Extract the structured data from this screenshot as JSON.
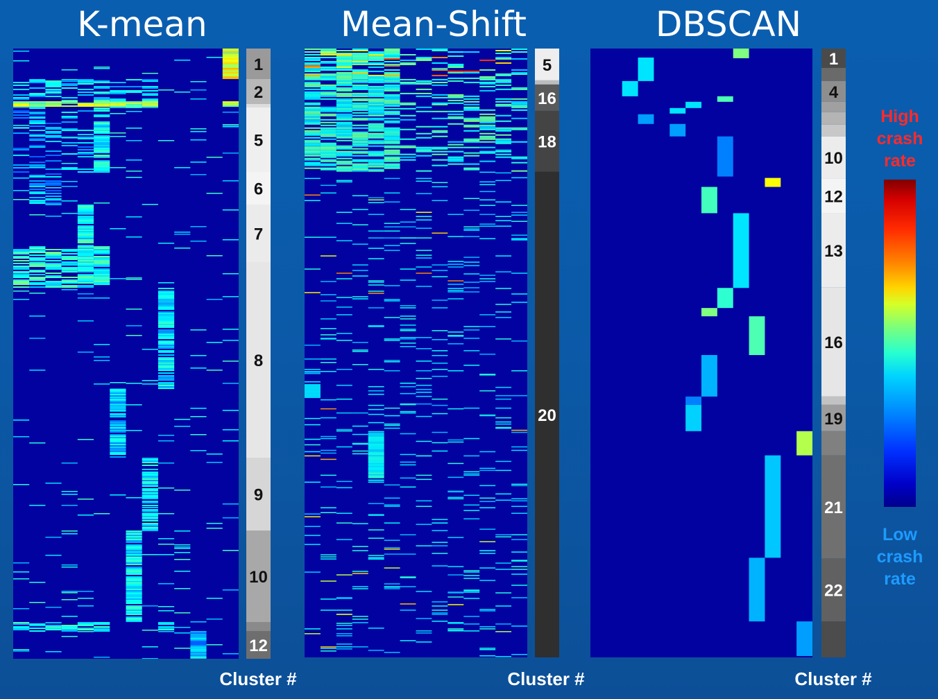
{
  "chart_data": [
    {
      "type": "heatmap",
      "title": "K-mean",
      "xlabel": "Cluster #",
      "clusters": [
        {
          "label": "1",
          "from": 0,
          "to": 44,
          "shade": "#9a9a9a"
        },
        {
          "label": "2",
          "from": 44,
          "to": 80,
          "shade": "#b8b8b8"
        },
        {
          "label": "",
          "from": 80,
          "to": 85,
          "shade": "#dddddd"
        },
        {
          "label": "5",
          "from": 85,
          "to": 178,
          "shade": "#efefef"
        },
        {
          "label": "6",
          "from": 178,
          "to": 225,
          "shade": "#f4f4f4"
        },
        {
          "label": "7",
          "from": 225,
          "to": 308,
          "shade": "#ebebeb"
        },
        {
          "label": "8",
          "from": 308,
          "to": 590,
          "shade": "#e6e6e6"
        },
        {
          "label": "9",
          "from": 590,
          "to": 695,
          "shade": "#d6d6d6"
        },
        {
          "label": "10",
          "from": 695,
          "to": 827,
          "shade": "#a8a8a8"
        },
        {
          "label": "",
          "from": 827,
          "to": 840,
          "shade": "#8a8a8a"
        },
        {
          "label": "12",
          "from": 840,
          "to": 880,
          "shade": "#6e6e6e"
        }
      ]
    },
    {
      "type": "heatmap",
      "title": "Mean-Shift",
      "xlabel": "Cluster #",
      "clusters": [
        {
          "label": "5",
          "from": 0,
          "to": 46,
          "shade": "#eeeeee"
        },
        {
          "label": "",
          "from": 46,
          "to": 52,
          "shade": "#bdbdbd"
        },
        {
          "label": "16",
          "from": 52,
          "to": 90,
          "shade": "#5a5a5a"
        },
        {
          "label": "18",
          "from": 90,
          "to": 178,
          "shade": "#444444"
        },
        {
          "label": "20",
          "from": 178,
          "to": 880,
          "shade": "#2f2f2f"
        }
      ]
    },
    {
      "type": "heatmap",
      "title": "DBSCAN",
      "xlabel": "Cluster #",
      "clusters": [
        {
          "label": "1",
          "from": 0,
          "to": 28,
          "shade": "#4a4a4a"
        },
        {
          "label": "",
          "from": 28,
          "to": 47,
          "shade": "#6a6a6a"
        },
        {
          "label": "4",
          "from": 47,
          "to": 77,
          "shade": "#8e8e8e"
        },
        {
          "label": "",
          "from": 77,
          "to": 92,
          "shade": "#a0a0a0"
        },
        {
          "label": "",
          "from": 92,
          "to": 110,
          "shade": "#b4b4b4"
        },
        {
          "label": "",
          "from": 110,
          "to": 127,
          "shade": "#c8c8c8"
        },
        {
          "label": "10",
          "from": 127,
          "to": 188,
          "shade": "#ececec"
        },
        {
          "label": "12",
          "from": 188,
          "to": 238,
          "shade": "#f4f4f4"
        },
        {
          "label": "13",
          "from": 238,
          "to": 345,
          "shade": "#ececec"
        },
        {
          "label": "16",
          "from": 345,
          "to": 503,
          "shade": "#e6e6e6"
        },
        {
          "label": "",
          "from": 503,
          "to": 515,
          "shade": "#c2c2c2"
        },
        {
          "label": "19",
          "from": 515,
          "to": 553,
          "shade": "#9c9c9c"
        },
        {
          "label": "",
          "from": 553,
          "to": 588,
          "shade": "#808080"
        },
        {
          "label": "21",
          "from": 588,
          "to": 737,
          "shade": "#707070"
        },
        {
          "label": "22",
          "from": 737,
          "to": 828,
          "shade": "#616161"
        },
        {
          "label": "",
          "from": 828,
          "to": 880,
          "shade": "#4c4c4c"
        }
      ],
      "blocks": [
        {
          "col": 9,
          "from": 0,
          "to": 14,
          "level": 0.5
        },
        {
          "col": 3,
          "from": 13,
          "to": 47,
          "level": 0.35
        },
        {
          "col": 2,
          "from": 47,
          "to": 69,
          "level": 0.35
        },
        {
          "col": 8,
          "from": 69,
          "to": 77,
          "level": 0.45
        },
        {
          "col": 6,
          "from": 77,
          "to": 86,
          "level": 0.35
        },
        {
          "col": 5,
          "from": 86,
          "to": 94,
          "level": 0.35
        },
        {
          "col": 3,
          "from": 95,
          "to": 109,
          "level": 0.28
        },
        {
          "col": 5,
          "from": 109,
          "to": 127,
          "level": 0.28
        },
        {
          "col": 8,
          "from": 127,
          "to": 185,
          "level": 0.25
        },
        {
          "col": 11,
          "from": 187,
          "to": 200,
          "level": 0.62
        },
        {
          "col": 7,
          "from": 200,
          "to": 238,
          "level": 0.44
        },
        {
          "col": 9,
          "from": 238,
          "to": 346,
          "level": 0.35
        },
        {
          "col": 8,
          "from": 346,
          "to": 375,
          "level": 0.42
        },
        {
          "col": 7,
          "from": 375,
          "to": 387,
          "level": 0.5
        },
        {
          "col": 10,
          "from": 387,
          "to": 443,
          "level": 0.45
        },
        {
          "col": 7,
          "from": 443,
          "to": 503,
          "level": 0.3
        },
        {
          "col": 6,
          "from": 503,
          "to": 515,
          "level": 0.25
        },
        {
          "col": 6,
          "from": 515,
          "to": 553,
          "level": 0.33
        },
        {
          "col": 13,
          "from": 553,
          "to": 588,
          "level": 0.55
        },
        {
          "col": 11,
          "from": 588,
          "to": 736,
          "level": 0.32
        },
        {
          "col": 10,
          "from": 736,
          "to": 828,
          "level": 0.3
        },
        {
          "col": 13,
          "from": 828,
          "to": 878,
          "level": 0.28
        }
      ]
    }
  ],
  "legend": {
    "high_label": "High crash rate",
    "low_label": "Low crash rate",
    "high_color": "#ff2a2a",
    "low_color": "#1e9bff"
  }
}
